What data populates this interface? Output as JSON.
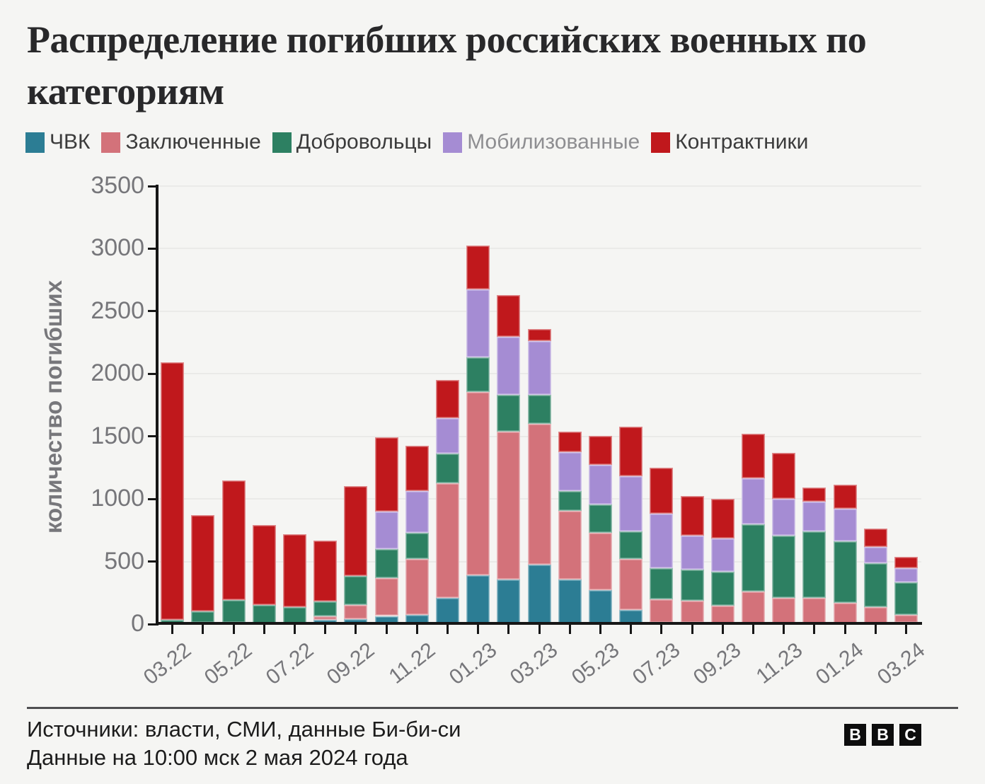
{
  "title": "Распределение погибших российских военных по категориям",
  "legend": [
    {
      "label": "ЧВК",
      "color": "#2C7D94",
      "text_color": "#3b3b3b"
    },
    {
      "label": "Заключенные",
      "color": "#D3727A",
      "text_color": "#3b3b3b"
    },
    {
      "label": "Добровольцы",
      "color": "#2D8062",
      "text_color": "#3b3b3b"
    },
    {
      "label": "Мобилизованные",
      "color": "#A58CD3",
      "text_color": "#8e8e91"
    },
    {
      "label": "Контрактники",
      "color": "#C0181C",
      "text_color": "#3b3b3b"
    }
  ],
  "chart_data": {
    "type": "bar",
    "stacked": true,
    "title": "Распределение погибших российских военных по категориям",
    "xlabel": "",
    "ylabel": "количество погибших",
    "ylim": [
      0,
      3500
    ],
    "yticks": [
      0,
      500,
      1000,
      1500,
      2000,
      2500,
      3000,
      3500
    ],
    "grid": "horizontal",
    "legend_position": "top",
    "xtick_label_every": 2,
    "categories": [
      "03.22",
      "04.22",
      "05.22",
      "06.22",
      "07.22",
      "08.22",
      "09.22",
      "10.22",
      "11.22",
      "12.22",
      "01.23",
      "02.23",
      "03.23",
      "04.23",
      "05.23",
      "06.23",
      "07.23",
      "08.23",
      "09.23",
      "10.23",
      "11.23",
      "12.23",
      "01.24",
      "02.24",
      "03.24"
    ],
    "series": [
      {
        "name": "ЧВК",
        "color": "#2C7D94",
        "values": [
          5,
          10,
          10,
          5,
          5,
          35,
          40,
          65,
          75,
          210,
          390,
          355,
          475,
          355,
          270,
          115,
          10,
          10,
          5,
          5,
          5,
          5,
          5,
          5,
          10
        ]
      },
      {
        "name": "Заключенные",
        "color": "#D3727A",
        "values": [
          0,
          0,
          0,
          0,
          0,
          25,
          115,
          300,
          445,
          915,
          1465,
          1185,
          1125,
          550,
          460,
          405,
          190,
          175,
          140,
          255,
          205,
          205,
          165,
          130,
          65
        ]
      },
      {
        "name": "Добровольцы",
        "color": "#2D8062",
        "values": [
          30,
          90,
          185,
          145,
          130,
          120,
          230,
          235,
          210,
          235,
          275,
          290,
          230,
          160,
          225,
          220,
          245,
          250,
          275,
          540,
          495,
          530,
          490,
          350,
          260
        ]
      },
      {
        "name": "Мобилизованные",
        "color": "#A58CD3",
        "values": [
          0,
          0,
          0,
          0,
          0,
          0,
          0,
          300,
          335,
          285,
          545,
          465,
          430,
          310,
          320,
          440,
          435,
          270,
          265,
          365,
          295,
          240,
          260,
          130,
          110
        ]
      },
      {
        "name": "Контрактники",
        "color": "#C0181C",
        "values": [
          2055,
          770,
          955,
          640,
          585,
          490,
          720,
          590,
          360,
          305,
          350,
          335,
          100,
          165,
          230,
          400,
          370,
          320,
          315,
          355,
          370,
          110,
          195,
          150,
          90
        ]
      }
    ],
    "totals": [
      2090,
      870,
      1150,
      790,
      720,
      670,
      1105,
      1490,
      1425,
      1950,
      3025,
      2630,
      2360,
      1540,
      1505,
      1580,
      1250,
      1025,
      1000,
      1520,
      1370,
      1090,
      1115,
      765,
      535
    ]
  },
  "footer": {
    "source_line": "Источники: власти, СМИ, данные Би-би-си",
    "updated_line": "Данные на 10:00 мск 2 мая 2024 года",
    "logo_letters": [
      "B",
      "B",
      "C"
    ]
  }
}
